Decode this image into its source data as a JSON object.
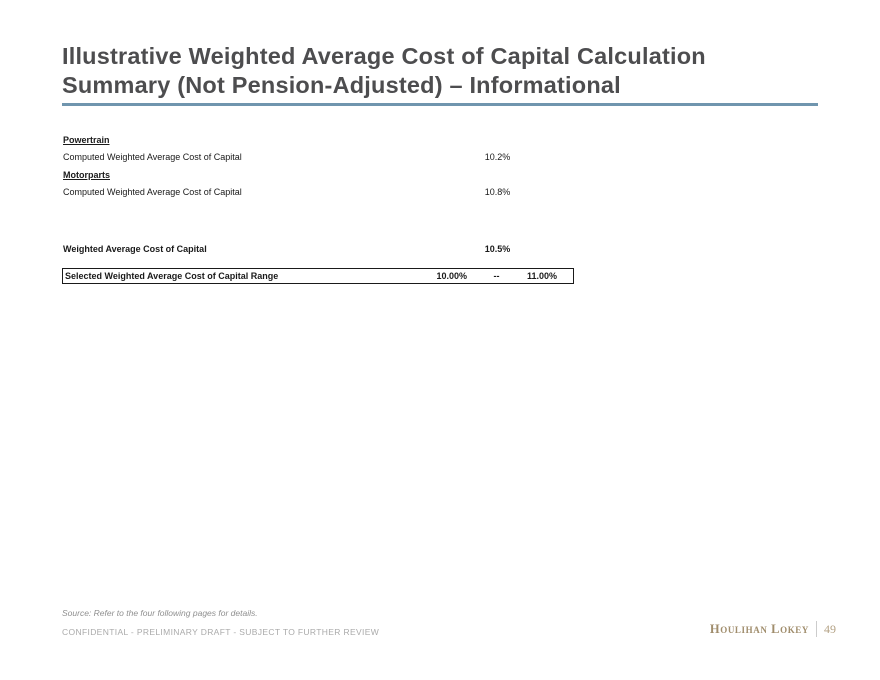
{
  "slide": {
    "title_line1": "Illustrative Weighted Average Cost of Capital Calculation",
    "title_line2": "Summary (Not Pension-Adjusted) – Informational"
  },
  "table": {
    "sections": [
      {
        "header": "Powertrain",
        "row": {
          "label": "Computed Weighted Average Cost of Capital",
          "value": "10.2%"
        }
      },
      {
        "header": "Motorparts",
        "row": {
          "label": "Computed Weighted Average Cost of Capital",
          "value": "10.8%"
        }
      }
    ],
    "total": {
      "label": "Weighted Average Cost of Capital",
      "value": "10.5%"
    },
    "selected": {
      "label": "Selected Weighted Average Cost of Capital Range",
      "low": "10.00%",
      "sep": "--",
      "high": "11.00%"
    }
  },
  "footer": {
    "source": "Source: Refer to the four following pages for details.",
    "confidential": "CONFIDENTIAL - PRELIMINARY DRAFT - SUBJECT TO FURTHER REVIEW",
    "brand": "Houlihan Lokey",
    "page_number": "49"
  },
  "colors": {
    "title_text": "#4d4d4f",
    "title_underline": "#7095ae",
    "table_text": "#1a1a1a",
    "brand_gold": "#a08d6c",
    "page_number_gold": "#b3a184",
    "footer_gray": "#8f8f8f",
    "confidential_gray": "#aaaaaa"
  }
}
